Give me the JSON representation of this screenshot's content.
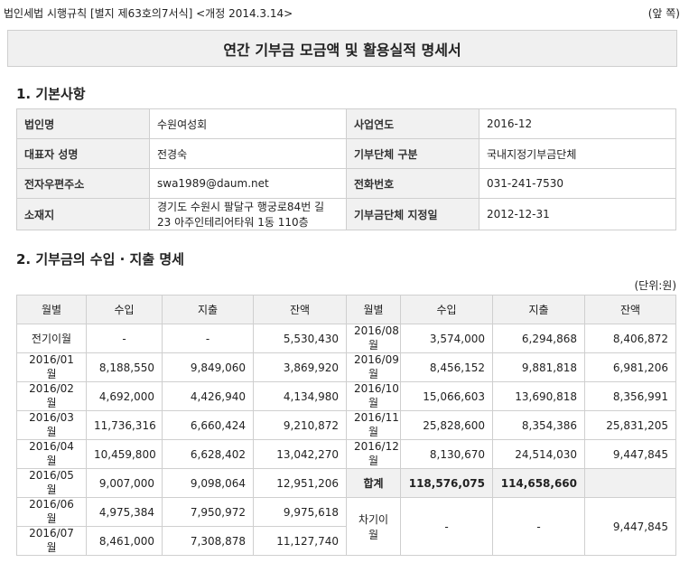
{
  "header": {
    "form": "법인세법 시행규칙 [별지 제63호의7서식] <개정 2014.3.14>",
    "side": "(앞 쪽)"
  },
  "title": "연간 기부금 모금액 및 활용실적 명세서",
  "section1": {
    "heading": "1. 기본사항",
    "rows": [
      [
        "법인명",
        "수원여성회",
        "사업연도",
        "2016-12"
      ],
      [
        "대표자 성명",
        "전경숙",
        "기부단체 구분",
        "국내지정기부금단체"
      ],
      [
        "전자우편주소",
        "swa1989@daum.net",
        "전화번호",
        "031-241-7530"
      ],
      [
        "소재지",
        "경기도 수원시 팔달구 행궁로84번 길 23 아주인테리어타워 1동 110층",
        "기부금단체 지정일",
        "2012-12-31"
      ]
    ]
  },
  "section2": {
    "heading": "2. 기부금의 수입 · 지출 명세",
    "unit": "(단위:원)",
    "headers": [
      "월별",
      "수입",
      "지출",
      "잔액",
      "월별",
      "수입",
      "지출",
      "잔액"
    ],
    "left_rows": [
      [
        "전기이월",
        "-",
        "-",
        "5,530,430"
      ],
      [
        "2016/01월",
        "8,188,550",
        "9,849,060",
        "3,869,920"
      ],
      [
        "2016/02월",
        "4,692,000",
        "4,426,940",
        "4,134,980"
      ],
      [
        "2016/03월",
        "11,736,316",
        "6,660,424",
        "9,210,872"
      ],
      [
        "2016/04월",
        "10,459,800",
        "6,628,402",
        "13,042,270"
      ],
      [
        "2016/05월",
        "9,007,000",
        "9,098,064",
        "12,951,206"
      ],
      [
        "2016/06월",
        "4,975,384",
        "7,950,972",
        "9,975,618"
      ],
      [
        "2016/07월",
        "8,461,000",
        "7,308,878",
        "11,127,740"
      ]
    ],
    "right_rows": [
      [
        "2016/08월",
        "3,574,000",
        "6,294,868",
        "8,406,872"
      ],
      [
        "2016/09월",
        "8,456,152",
        "9,881,818",
        "6,981,206"
      ],
      [
        "2016/10월",
        "15,066,603",
        "13,690,818",
        "8,356,991"
      ],
      [
        "2016/11월",
        "25,828,600",
        "8,354,386",
        "25,831,205"
      ],
      [
        "2016/12월",
        "8,130,670",
        "24,514,030",
        "9,447,845"
      ]
    ],
    "total": {
      "label": "합계",
      "income": "118,576,075",
      "expense": "114,658,660"
    },
    "carry": {
      "label": "차기이월",
      "income": "-",
      "expense": "-",
      "balance": "9,447,845"
    }
  }
}
